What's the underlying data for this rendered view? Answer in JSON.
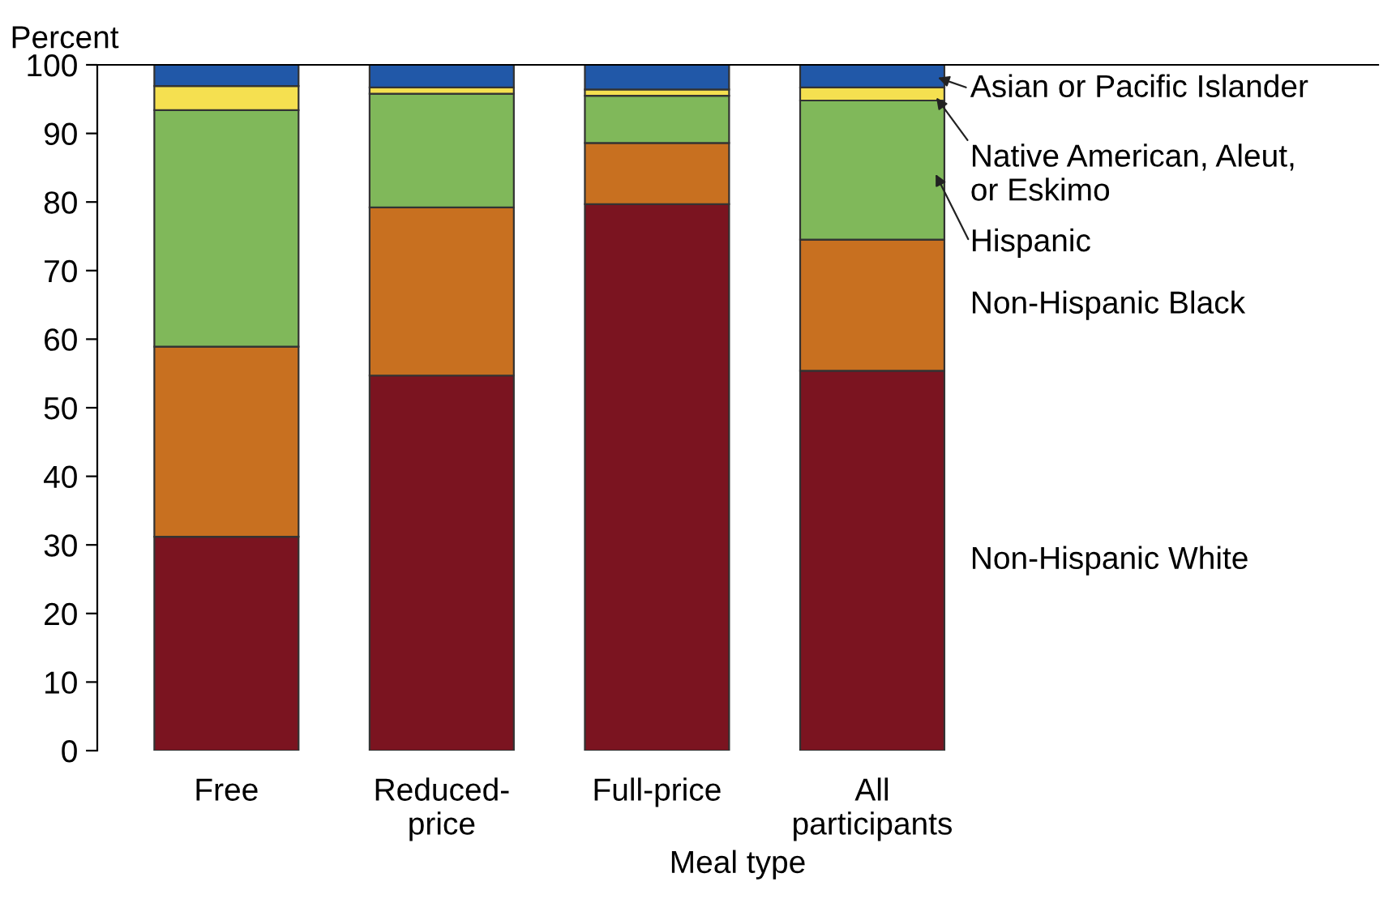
{
  "chart_data": {
    "type": "bar",
    "stacked": true,
    "ylabel": "Percent",
    "xlabel": "Meal type",
    "categories": [
      "Free",
      "Reduced-\nprice",
      "Full-price",
      "All\nparticipants"
    ],
    "series": [
      {
        "name": "Non-Hispanic White",
        "color": "#7b1420",
        "values": [
          31.2,
          54.7,
          79.7,
          55.4
        ]
      },
      {
        "name": "Non-Hispanic Black",
        "color": "#c87020",
        "values": [
          27.7,
          24.5,
          8.9,
          19.1
        ]
      },
      {
        "name": "Hispanic",
        "color": "#80b85a",
        "values": [
          34.5,
          16.6,
          6.9,
          20.3
        ]
      },
      {
        "name": "Native American, Aleut,\nor Eskimo",
        "color": "#f5e050",
        "values": [
          3.5,
          0.9,
          0.9,
          1.9
        ]
      },
      {
        "name": "Asian or Pacific Islander",
        "color": "#2158a8",
        "values": [
          3.1,
          3.3,
          3.6,
          3.3
        ]
      }
    ],
    "ylim": [
      0,
      100
    ],
    "yticks": [
      0,
      10,
      20,
      30,
      40,
      50,
      60,
      70,
      80,
      90,
      100
    ],
    "grid": false,
    "legend": "right"
  }
}
